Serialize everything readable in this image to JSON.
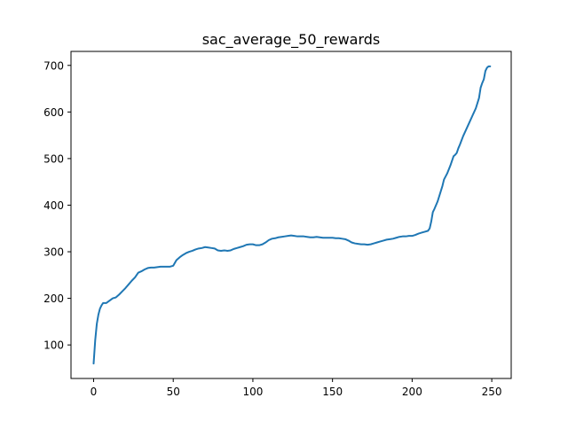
{
  "chart_data": {
    "type": "line",
    "title": "sac_average_50_rewards",
    "xlabel": "",
    "ylabel": "",
    "xlim": [
      -14.2,
      262.2
    ],
    "ylim": [
      28,
      730
    ],
    "xticks": [
      0,
      50,
      100,
      150,
      200,
      250
    ],
    "yticks": [
      100,
      200,
      300,
      400,
      500,
      600,
      700
    ],
    "grid": false,
    "legend": "none",
    "line_color": "#1f77b4",
    "series": [
      {
        "x": [
          0,
          1,
          2,
          3,
          4,
          5,
          6,
          7,
          8,
          10,
          12,
          14,
          16,
          18,
          20,
          22,
          24,
          26,
          28,
          30,
          32,
          34,
          36,
          38,
          40,
          42,
          44,
          46,
          48,
          50,
          52,
          54,
          56,
          58,
          60,
          62,
          64,
          66,
          68,
          70,
          72,
          74,
          76,
          78,
          80,
          82,
          84,
          86,
          88,
          90,
          92,
          94,
          96,
          98,
          100,
          102,
          104,
          106,
          108,
          110,
          112,
          114,
          116,
          118,
          120,
          122,
          124,
          126,
          128,
          130,
          132,
          134,
          136,
          138,
          140,
          142,
          144,
          146,
          148,
          150,
          152,
          154,
          156,
          158,
          160,
          162,
          164,
          166,
          168,
          170,
          172,
          174,
          176,
          178,
          180,
          182,
          184,
          186,
          188,
          190,
          192,
          194,
          196,
          198,
          200,
          202,
          204,
          206,
          208,
          210,
          211,
          212,
          213,
          214,
          216,
          218,
          219,
          220,
          222,
          224,
          226,
          227,
          228,
          229,
          230,
          232,
          234,
          236,
          238,
          240,
          242,
          243,
          244,
          245,
          246,
          247,
          248,
          249
        ],
        "y": [
          60,
          110,
          145,
          165,
          178,
          185,
          190,
          190,
          190,
          195,
          200,
          202,
          208,
          215,
          222,
          230,
          238,
          245,
          255,
          258,
          262,
          265,
          266,
          266,
          267,
          268,
          268,
          268,
          268,
          270,
          282,
          288,
          293,
          297,
          300,
          302,
          305,
          307,
          308,
          310,
          309,
          308,
          307,
          303,
          302,
          303,
          302,
          303,
          306,
          308,
          310,
          312,
          315,
          316,
          316,
          314,
          314,
          316,
          320,
          325,
          328,
          329,
          331,
          332,
          333,
          334,
          335,
          334,
          333,
          333,
          333,
          332,
          331,
          331,
          332,
          331,
          330,
          330,
          330,
          330,
          329,
          329,
          328,
          327,
          324,
          320,
          318,
          317,
          316,
          316,
          315,
          316,
          318,
          320,
          322,
          324,
          326,
          327,
          328,
          330,
          332,
          333,
          333,
          334,
          334,
          336,
          339,
          341,
          343,
          345,
          350,
          365,
          385,
          392,
          408,
          430,
          441,
          455,
          468,
          485,
          505,
          508,
          512,
          522,
          530,
          548,
          563,
          578,
          593,
          608,
          630,
          652,
          662,
          670,
          688,
          695,
          698,
          698
        ]
      }
    ]
  }
}
